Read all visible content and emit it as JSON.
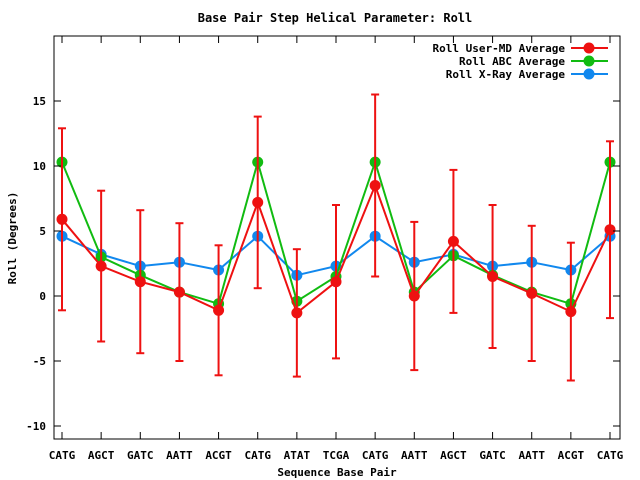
{
  "chart_data": {
    "type": "line",
    "title": "Base Pair Step Helical Parameter: Roll",
    "xlabel": "Sequence Base Pair",
    "ylabel": "Roll (Degrees)",
    "ylim": [
      -11,
      20
    ],
    "yticks": [
      -10,
      -5,
      0,
      5,
      10,
      15
    ],
    "ytick_labels": [
      "-10",
      "-5",
      "0",
      "5",
      "10",
      "15"
    ],
    "categories": [
      "CATG",
      "AGCT",
      "GATC",
      "AATT",
      "ACGT",
      "CATG",
      "ATAT",
      "TCGA",
      "CATG",
      "AATT",
      "AGCT",
      "GATC",
      "AATT",
      "ACGT",
      "CATG"
    ],
    "grid": false,
    "legend_position": "top-right",
    "series": [
      {
        "name": "Roll User-MD Average",
        "color": "#ee1111",
        "values": [
          5.9,
          2.3,
          1.1,
          0.3,
          -1.1,
          7.2,
          -1.3,
          1.1,
          8.5,
          0.0,
          4.2,
          1.5,
          0.2,
          -1.2,
          5.1
        ],
        "error": [
          7.0,
          5.8,
          5.5,
          5.3,
          5.0,
          6.6,
          4.9,
          5.9,
          7.0,
          5.7,
          5.5,
          5.5,
          5.2,
          5.3,
          6.8
        ]
      },
      {
        "name": "Roll ABC Average",
        "color": "#11bb11",
        "values": [
          10.3,
          3.0,
          1.6,
          0.3,
          -0.6,
          10.3,
          -0.4,
          1.5,
          10.3,
          0.3,
          3.1,
          1.6,
          0.3,
          -0.6,
          10.3
        ]
      },
      {
        "name": "Roll X-Ray Average",
        "color": "#1188ee",
        "values": [
          4.6,
          3.2,
          2.3,
          2.6,
          2.0,
          4.6,
          1.6,
          2.3,
          4.6,
          2.6,
          3.2,
          2.3,
          2.6,
          2.0,
          4.6
        ]
      }
    ]
  }
}
